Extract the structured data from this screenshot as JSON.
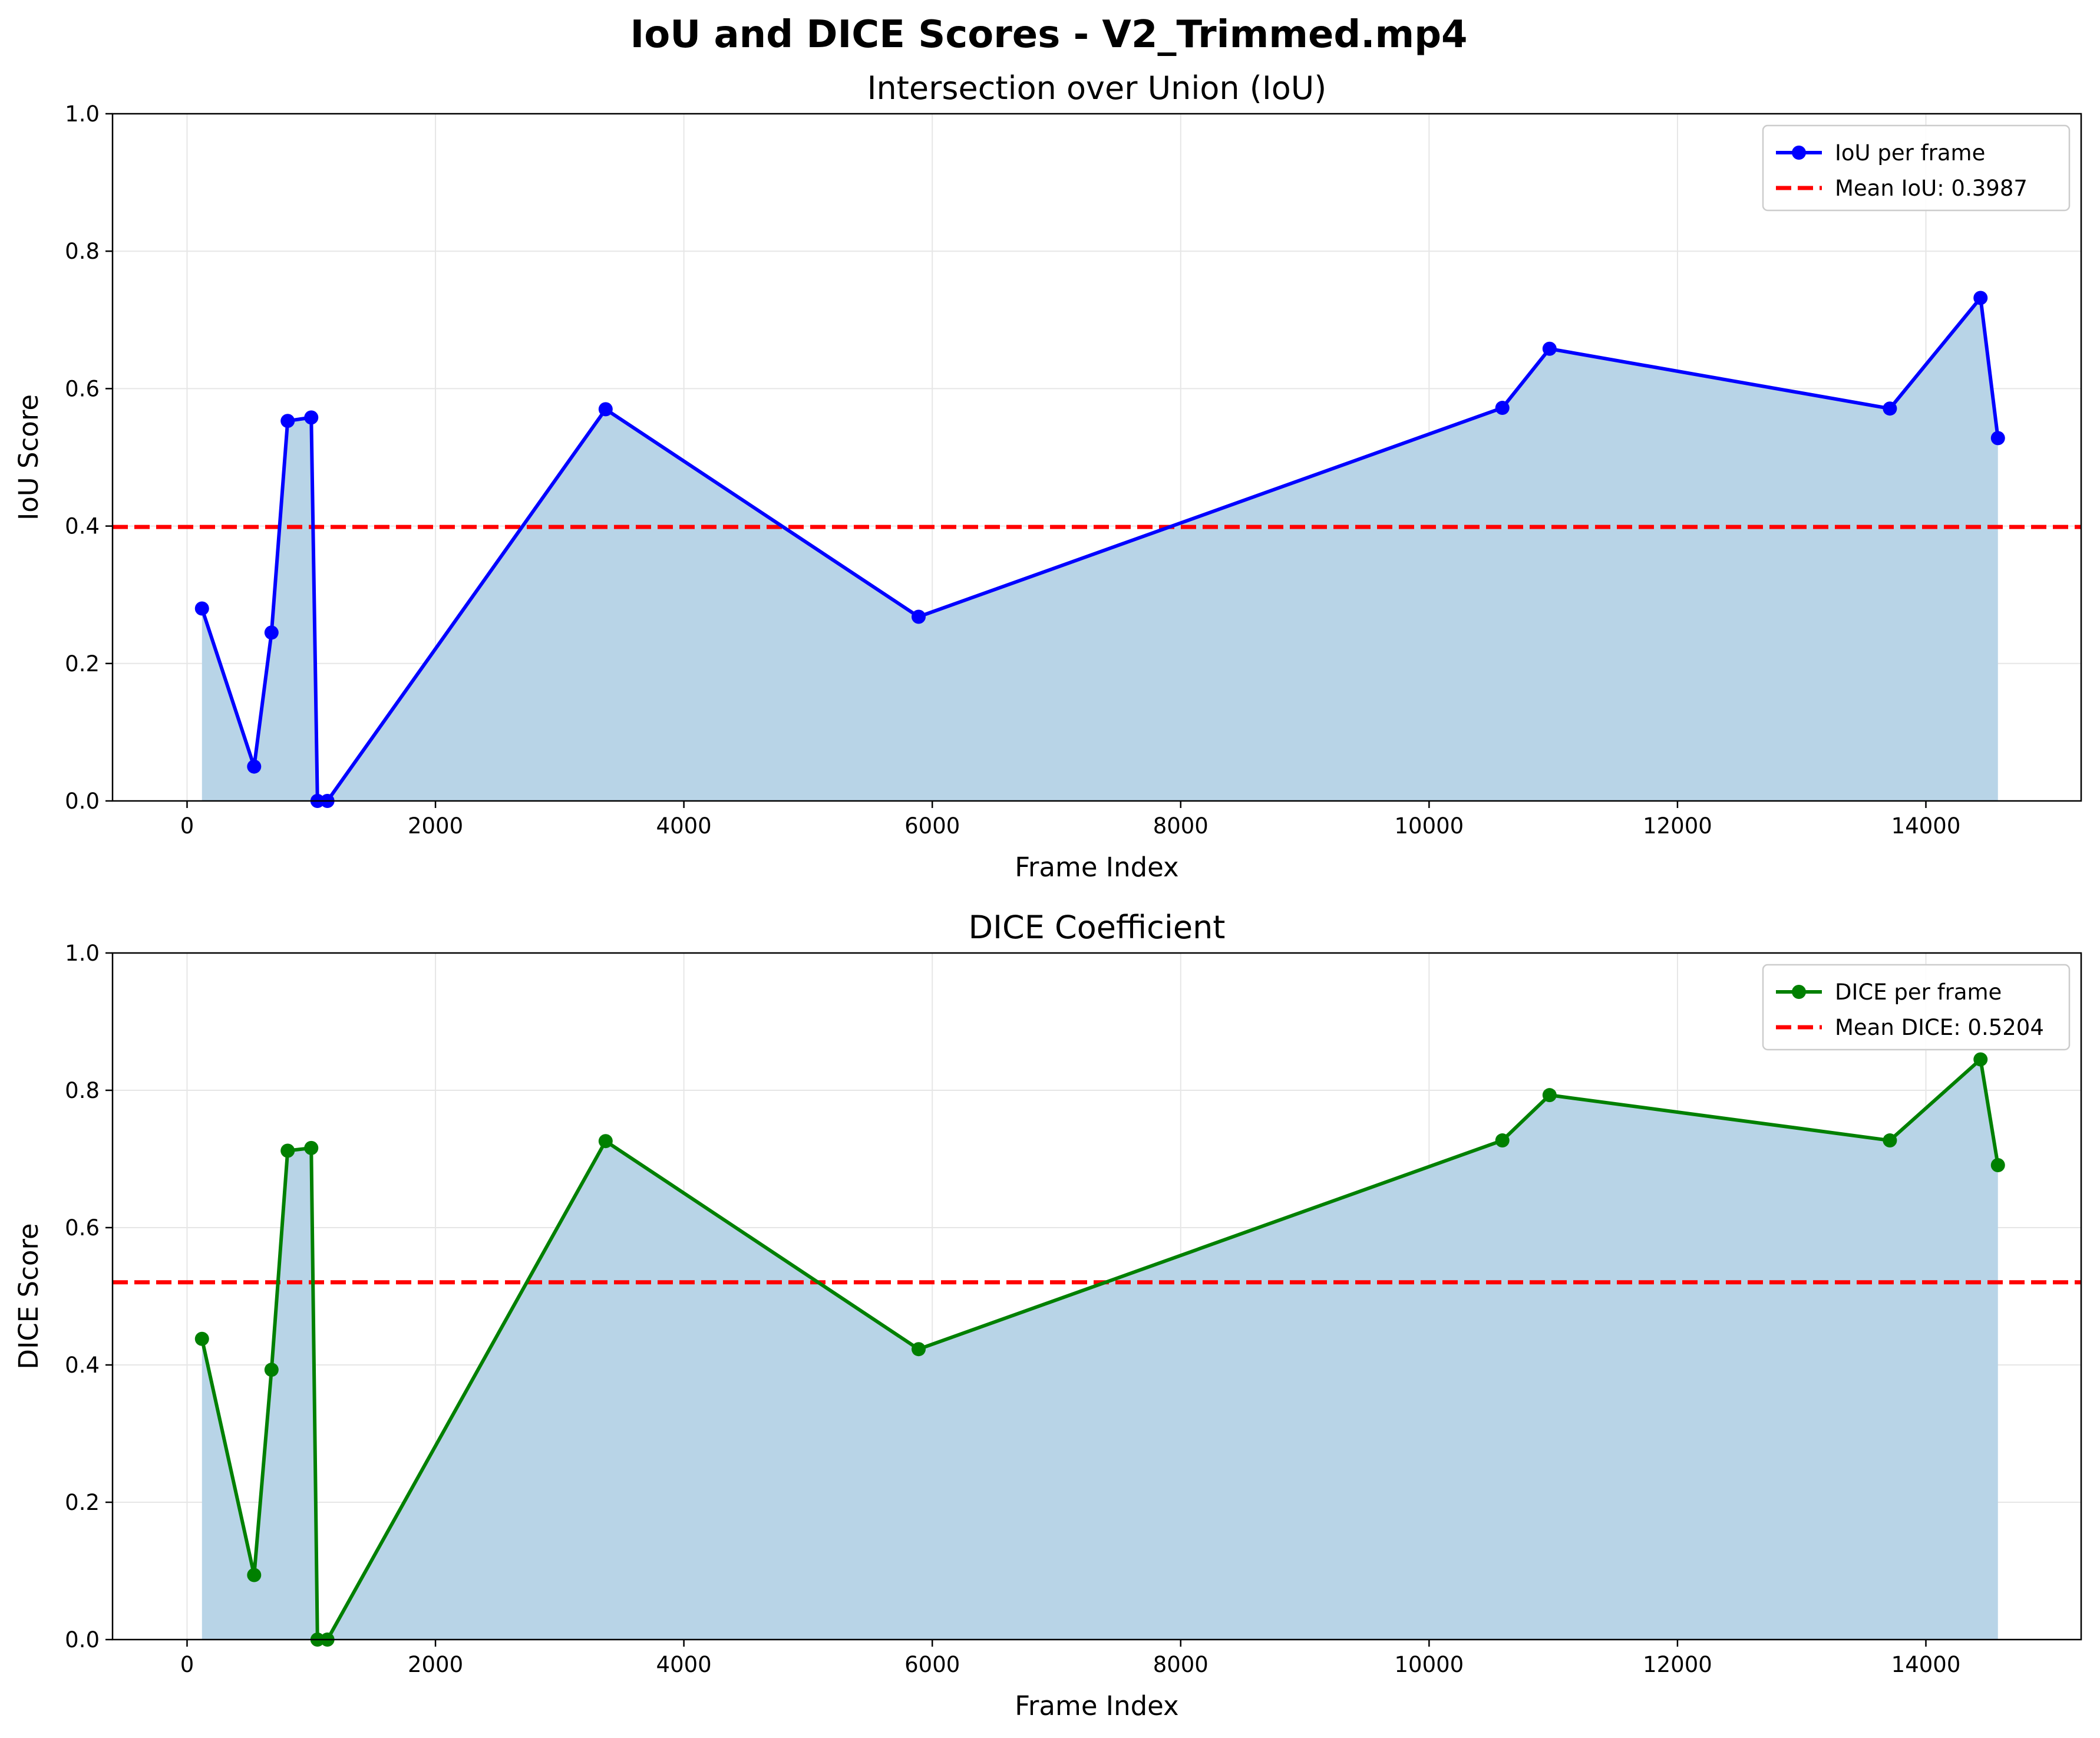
{
  "title": "IoU and DICE Scores - V2_Trimmed.mp4",
  "colors": {
    "fill": "#b8d4e7",
    "mean": "#ff0000",
    "grid": "#e6e6e6"
  },
  "chart_data": [
    {
      "type": "line",
      "title": "Intersection over Union (IoU)",
      "xlabel": "Frame Index",
      "ylabel": "IoU Score",
      "xlim": [
        -600,
        15250
      ],
      "ylim": [
        0,
        1
      ],
      "xticks": [
        0,
        2000,
        4000,
        6000,
        8000,
        10000,
        12000,
        14000
      ],
      "yticks": [
        0.0,
        0.2,
        0.4,
        0.6,
        0.8,
        1.0
      ],
      "grid": true,
      "legend_position": "top-right",
      "series": [
        {
          "name": "IoU per frame",
          "color": "#0000ff",
          "x": [
            120,
            540,
            680,
            810,
            1000,
            1050,
            1130,
            3370,
            5890,
            10590,
            10970,
            13710,
            14440,
            14580
          ],
          "y": [
            0.28,
            0.05,
            0.245,
            0.553,
            0.558,
            0.0,
            0.0,
            0.57,
            0.268,
            0.572,
            0.658,
            0.571,
            0.732,
            0.528
          ]
        }
      ],
      "mean": {
        "name": "Mean IoU: 0.3987",
        "value": 0.3987
      }
    },
    {
      "type": "line",
      "title": "DICE Coefficient",
      "xlabel": "Frame Index",
      "ylabel": "DICE Score",
      "xlim": [
        -600,
        15250
      ],
      "ylim": [
        0,
        1
      ],
      "xticks": [
        0,
        2000,
        4000,
        6000,
        8000,
        10000,
        12000,
        14000
      ],
      "yticks": [
        0.0,
        0.2,
        0.4,
        0.6,
        0.8,
        1.0
      ],
      "grid": true,
      "legend_position": "top-right",
      "series": [
        {
          "name": "DICE per frame",
          "color": "#008000",
          "x": [
            120,
            540,
            680,
            810,
            1000,
            1050,
            1130,
            3370,
            5890,
            10590,
            10970,
            13710,
            14440,
            14580
          ],
          "y": [
            0.438,
            0.094,
            0.393,
            0.712,
            0.716,
            0.0,
            0.0,
            0.726,
            0.423,
            0.727,
            0.793,
            0.727,
            0.845,
            0.691
          ]
        }
      ],
      "mean": {
        "name": "Mean DICE: 0.5204",
        "value": 0.5204
      }
    }
  ]
}
